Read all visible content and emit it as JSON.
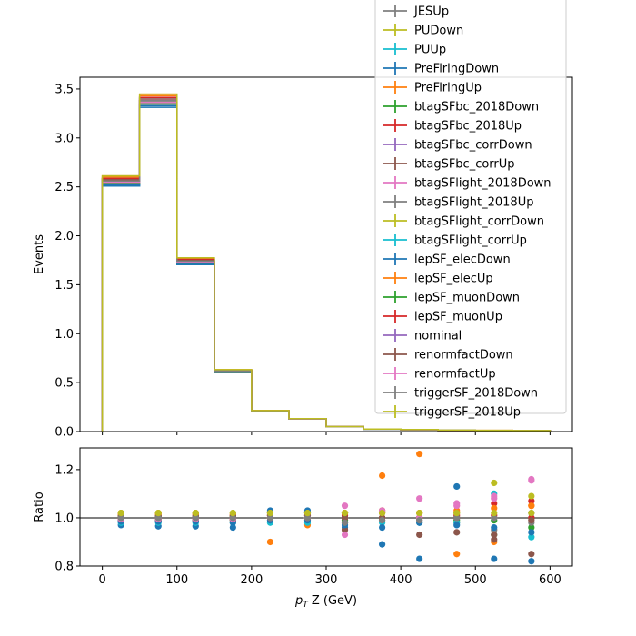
{
  "chart_data": [
    {
      "type": "step",
      "ylabel": "Events",
      "xlim": [
        -30,
        630
      ],
      "ylim": [
        0.0,
        3.62
      ],
      "xticks": [
        0,
        100,
        200,
        300,
        400,
        500,
        600
      ],
      "yticks": [
        "0.0",
        "0.5",
        "1.0",
        "1.5",
        "2.0",
        "2.5",
        "3.0",
        "3.5"
      ],
      "ytick_values": [
        0.0,
        0.5,
        1.0,
        1.5,
        2.0,
        2.5,
        3.0,
        3.5
      ],
      "bin_edges": [
        0,
        50,
        100,
        150,
        200,
        250,
        300,
        350,
        400,
        450,
        500,
        550,
        600
      ],
      "nominal_values": [
        2.56,
        3.38,
        1.74,
        0.62,
        0.21,
        0.13,
        0.05,
        0.025,
        0.02,
        0.015,
        0.012,
        0.01
      ],
      "series_scales": [
        1.0,
        0.99,
        1.01,
        0.98,
        1.02,
        1.0,
        1.01,
        0.99,
        1.0,
        1.005,
        0.995,
        1.0,
        1.01,
        0.985,
        1.015,
        0.99,
        1.01,
        1.0,
        1.005,
        0.995,
        1.0,
        1.02
      ],
      "legend": {
        "placement": "top-right",
        "entries": [
          {
            "name": "JESUp",
            "color": "#7f7f7f"
          },
          {
            "name": "PUDown",
            "color": "#bcbd22"
          },
          {
            "name": "PUUp",
            "color": "#17becf"
          },
          {
            "name": "PreFiringDown",
            "color": "#1f77b4"
          },
          {
            "name": "PreFiringUp",
            "color": "#ff7f0e"
          },
          {
            "name": "btagSFbc_2018Down",
            "color": "#2ca02c"
          },
          {
            "name": "btagSFbc_2018Up",
            "color": "#d62728"
          },
          {
            "name": "btagSFbc_corrDown",
            "color": "#9467bd"
          },
          {
            "name": "btagSFbc_corrUp",
            "color": "#8c564b"
          },
          {
            "name": "btagSFlight_2018Down",
            "color": "#e377c2"
          },
          {
            "name": "btagSFlight_2018Up",
            "color": "#7f7f7f"
          },
          {
            "name": "btagSFlight_corrDown",
            "color": "#bcbd22"
          },
          {
            "name": "btagSFlight_corrUp",
            "color": "#17becf"
          },
          {
            "name": "lepSF_elecDown",
            "color": "#1f77b4"
          },
          {
            "name": "lepSF_elecUp",
            "color": "#ff7f0e"
          },
          {
            "name": "lepSF_muonDown",
            "color": "#2ca02c"
          },
          {
            "name": "lepSF_muonUp",
            "color": "#d62728"
          },
          {
            "name": "nominal",
            "color": "#9467bd"
          },
          {
            "name": "renormfactDown",
            "color": "#8c564b"
          },
          {
            "name": "renormfactUp",
            "color": "#e377c2"
          },
          {
            "name": "triggerSF_2018Down",
            "color": "#7f7f7f"
          },
          {
            "name": "triggerSF_2018Up",
            "color": "#bcbd22"
          }
        ]
      }
    },
    {
      "type": "scatter",
      "ylabel": "Ratio",
      "xlabel_main": "p",
      "xlabel_sub": "T",
      "xlabel_rest": " Z (GeV)",
      "xlim": [
        -30,
        630
      ],
      "ylim": [
        0.8,
        1.29
      ],
      "xticks": [
        0,
        100,
        200,
        300,
        400,
        500,
        600
      ],
      "yticks": [
        "0.8",
        "1.0",
        "1.2"
      ],
      "ytick_values": [
        0.8,
        1.0,
        1.2
      ],
      "reference_line": 1.0,
      "x": [
        25,
        75,
        125,
        175,
        225,
        275,
        325,
        375,
        425,
        475,
        525,
        575
      ],
      "series": [
        {
          "color": "#1f77b4",
          "values": [
            0.97,
            0.965,
            0.965,
            0.96,
            1.03,
            1.03,
            0.96,
            0.89,
            0.83,
            1.13,
            0.83,
            0.82
          ]
        },
        {
          "color": "#ff7f0e",
          "values": [
            1.02,
            1.02,
            1.02,
            1.01,
            0.9,
            0.97,
            1.02,
            1.175,
            1.265,
            0.85,
            0.9,
            1.05
          ]
        },
        {
          "color": "#2ca02c",
          "values": [
            0.99,
            0.99,
            0.99,
            0.99,
            1.0,
            1.0,
            0.99,
            1.0,
            1.0,
            0.99,
            0.93,
            0.96
          ]
        },
        {
          "color": "#d62728",
          "values": [
            1.01,
            1.01,
            1.01,
            1.01,
            1.0,
            1.0,
            1.01,
            1.0,
            1.0,
            1.01,
            1.06,
            1.07
          ]
        },
        {
          "color": "#9467bd",
          "values": [
            1.0,
            1.0,
            1.0,
            1.0,
            1.0,
            1.0,
            1.0,
            1.0,
            1.0,
            1.0,
            1.0,
            1.0
          ]
        },
        {
          "color": "#8c564b",
          "values": [
            0.99,
            0.99,
            0.99,
            0.99,
            1.02,
            1.02,
            0.95,
            1.03,
            0.93,
            0.94,
            0.91,
            0.85
          ]
        },
        {
          "color": "#e377c2",
          "values": [
            1.0,
            1.0,
            1.0,
            1.0,
            1.01,
            1.01,
            0.93,
            1.02,
            1.08,
            1.06,
            1.08,
            1.155
          ]
        },
        {
          "color": "#7f7f7f",
          "values": [
            0.99,
            0.99,
            0.99,
            0.99,
            1.0,
            1.0,
            0.98,
            0.99,
            0.99,
            0.98,
            0.95,
            0.98
          ]
        },
        {
          "color": "#bcbd22",
          "values": [
            1.02,
            1.02,
            1.02,
            1.02,
            1.02,
            1.02,
            1.02,
            1.02,
            1.02,
            1.02,
            1.145,
            1.09
          ]
        },
        {
          "color": "#17becf",
          "values": [
            0.98,
            0.98,
            0.98,
            0.98,
            0.98,
            0.98,
            0.98,
            0.98,
            0.98,
            0.98,
            1.1,
            0.92
          ]
        },
        {
          "color": "#1f77b4",
          "values": [
            0.985,
            0.985,
            0.985,
            0.98,
            0.99,
            0.99,
            0.97,
            0.96,
            0.98,
            0.97,
            0.96,
            0.94
          ]
        },
        {
          "color": "#ff7f0e",
          "values": [
            1.015,
            1.015,
            1.015,
            1.015,
            1.01,
            1.01,
            1.02,
            1.03,
            1.02,
            1.03,
            1.04,
            1.05
          ]
        },
        {
          "color": "#2ca02c",
          "values": [
            1.005,
            1.005,
            1.005,
            1.005,
            1.0,
            1.0,
            1.0,
            1.0,
            1.0,
            1.0,
            0.99,
            1.0
          ]
        },
        {
          "color": "#d62728",
          "values": [
            0.995,
            0.995,
            0.995,
            0.995,
            1.0,
            1.0,
            1.0,
            1.0,
            1.0,
            1.0,
            1.01,
            1.0
          ]
        },
        {
          "color": "#8c564b",
          "values": [
            1.005,
            1.005,
            1.005,
            1.005,
            1.01,
            1.01,
            1.0,
            1.0,
            1.0,
            1.0,
            0.93,
            0.99
          ]
        },
        {
          "color": "#e377c2",
          "values": [
            0.995,
            0.995,
            0.995,
            0.995,
            1.0,
            1.0,
            1.05,
            1.03,
            1.0,
            1.05,
            1.09,
            1.16
          ]
        },
        {
          "color": "#7f7f7f",
          "values": [
            1.0,
            1.0,
            1.0,
            1.0,
            1.0,
            1.0,
            0.98,
            0.99,
            0.99,
            1.0,
            1.0,
            1.02
          ]
        },
        {
          "color": "#bcbd22",
          "values": [
            1.02,
            1.02,
            1.02,
            1.02,
            1.02,
            1.02,
            1.02,
            1.02,
            1.02,
            1.02,
            1.02,
            1.02
          ]
        }
      ]
    }
  ]
}
